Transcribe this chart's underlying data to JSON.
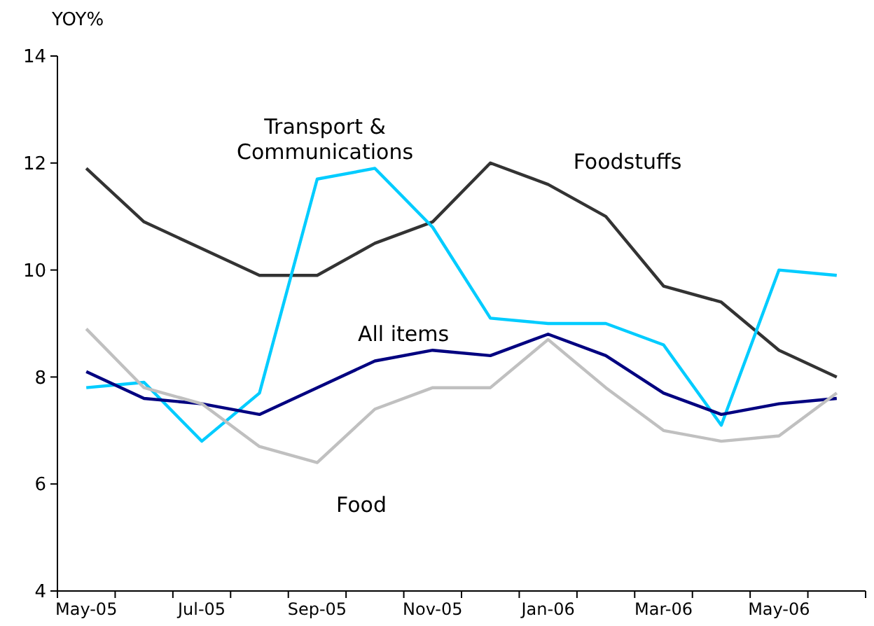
{
  "chart_data": {
    "type": "line",
    "ylabel": "YOY%",
    "categories": [
      "May-05",
      null,
      "Jul-05",
      null,
      "Sep-05",
      null,
      "Nov-05",
      null,
      "Jan-06",
      null,
      "Mar-06",
      null,
      "May-06",
      null
    ],
    "ylim": [
      4,
      14
    ],
    "yticks": [
      4,
      6,
      8,
      10,
      12,
      14
    ],
    "grid": false,
    "legend": false,
    "marker": "none",
    "line_style": "solid",
    "series": [
      {
        "name": "Foodstuffs",
        "color": "#333333",
        "values": [
          11.9,
          10.9,
          10.4,
          9.9,
          9.9,
          10.5,
          10.9,
          12.0,
          11.6,
          11.0,
          9.7,
          9.4,
          8.5,
          8.0
        ]
      },
      {
        "name": "Transport & Communications",
        "color": "#00ccff",
        "values": [
          7.8,
          7.9,
          6.8,
          7.7,
          11.7,
          11.9,
          10.8,
          9.1,
          9.0,
          9.0,
          8.6,
          7.1,
          10.0,
          9.9
        ]
      },
      {
        "name": "All items",
        "color": "#000080",
        "values": [
          8.1,
          7.6,
          7.5,
          7.3,
          7.8,
          8.3,
          8.5,
          8.4,
          8.8,
          8.4,
          7.7,
          7.3,
          7.5,
          7.6
        ]
      },
      {
        "name": "Food",
        "color": "#c0c0c0",
        "values": [
          8.9,
          7.8,
          7.5,
          6.7,
          6.4,
          7.4,
          7.8,
          7.8,
          8.7,
          7.8,
          7.0,
          6.8,
          6.9,
          7.7
        ]
      }
    ]
  }
}
